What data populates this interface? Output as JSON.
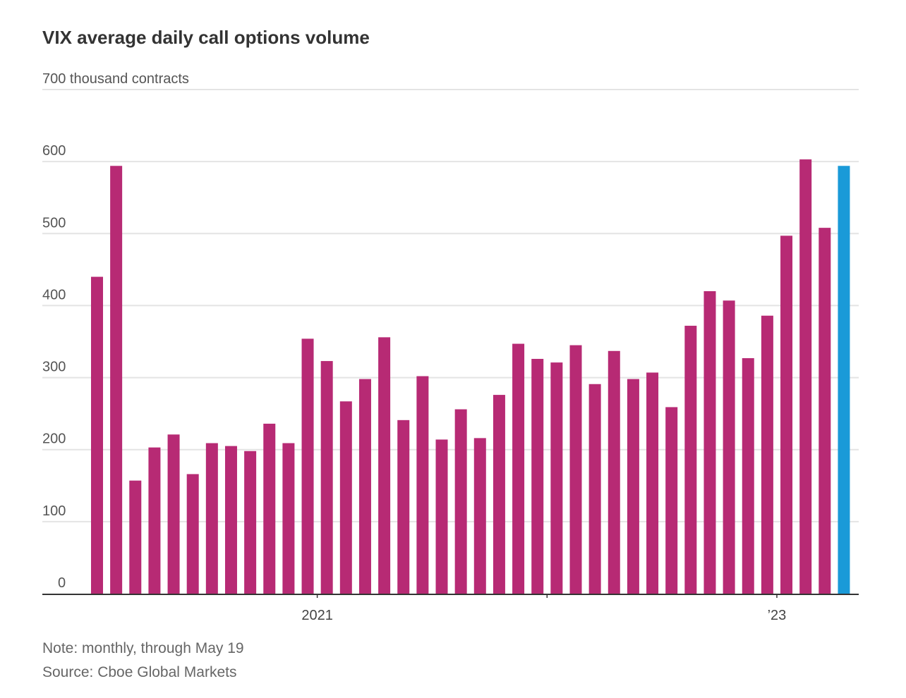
{
  "chart_data": {
    "type": "bar",
    "title": "VIX average daily call options volume",
    "ylabel": "thousand contracts",
    "ylim": [
      0,
      700
    ],
    "y_ticks": [
      0,
      100,
      200,
      300,
      400,
      500,
      600,
      700
    ],
    "top_tick_label": "700 thousand contracts",
    "grid": true,
    "x_tick_labels": [
      {
        "label": "2021",
        "index": 11.5
      },
      {
        "label": "",
        "index": 23.5
      },
      {
        "label": "’23",
        "index": 35.5
      }
    ],
    "values": [
      440,
      594,
      157,
      203,
      221,
      166,
      209,
      205,
      198,
      236,
      209,
      354,
      323,
      267,
      298,
      356,
      241,
      302,
      214,
      256,
      216,
      276,
      347,
      326,
      321,
      345,
      291,
      337,
      298,
      307,
      259,
      372,
      420,
      407,
      327,
      386,
      497,
      603,
      508,
      594
    ],
    "highlight_index": 39,
    "colors": {
      "bar": "#b72a74",
      "highlight": "#1a9ad8"
    }
  },
  "title": "VIX average daily call options volume",
  "note": "Note: monthly, through May 19",
  "source": "Source: Cboe Global Markets"
}
